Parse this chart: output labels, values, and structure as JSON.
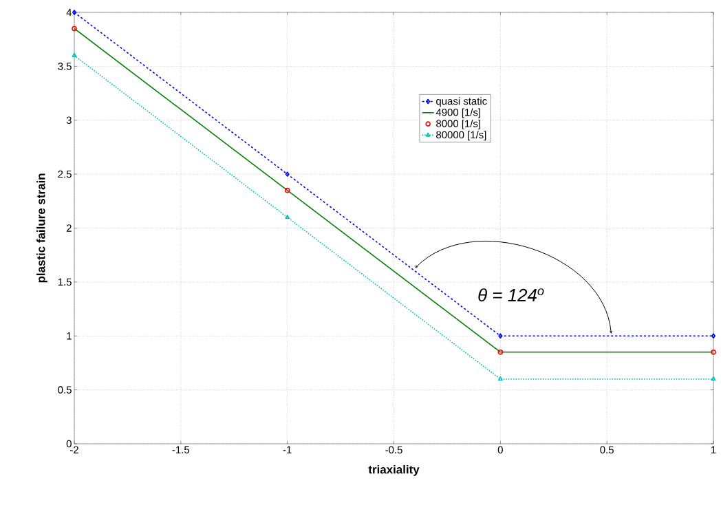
{
  "chart_data": {
    "type": "line",
    "xlabel": "triaxiality",
    "ylabel": "plastic failure strain",
    "x": [
      -2,
      -1,
      0,
      1
    ],
    "series": [
      {
        "name": "quasi static",
        "color": "#0000ff",
        "values": [
          4,
          2.5,
          1,
          1
        ],
        "marker": "diamond",
        "line_style": "dashed"
      },
      {
        "name": "4900 [1/s]",
        "color": "#0a800a",
        "values": [
          3.85,
          2.35,
          0.85,
          0.85
        ],
        "marker": "none",
        "line_style": "solid"
      },
      {
        "name": "8000  [1/s]",
        "type": "scatter",
        "color": "#ff0000",
        "values": [
          3.85,
          2.35,
          0.85,
          0.85
        ],
        "marker": "circle"
      },
      {
        "name": "80000 [1/s]",
        "color": "#00bfbf",
        "values": [
          3.6,
          2.1,
          0.6,
          0.6
        ],
        "marker": "triangle",
        "line_style": "dotted"
      }
    ],
    "xlim": [
      -2,
      1
    ],
    "ylim": [
      0,
      4
    ],
    "xticks": [
      -2,
      -1.5,
      -1,
      -0.5,
      0,
      0.5,
      1
    ],
    "yticks": [
      0,
      0.5,
      1,
      1.5,
      2,
      2.5,
      3,
      3.5,
      4
    ],
    "grid": true,
    "legend": "top right",
    "annotations": [
      "θ = 124$^{o}$"
    ]
  }
}
